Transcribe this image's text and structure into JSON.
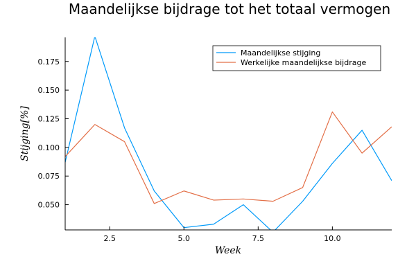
{
  "chart_data": {
    "type": "line",
    "title": "Maandelijkse bijdrage tot het totaal vermogen",
    "xlabel": "Week",
    "ylabel": "Stijging[%]",
    "xlim": [
      1,
      12
    ],
    "ylim": [
      0.028,
      0.196
    ],
    "x_ticks": [
      2.5,
      5.0,
      7.5,
      10.0
    ],
    "x_tick_labels": [
      "2.5",
      "5.0",
      "7.5",
      "10.0"
    ],
    "y_ticks": [
      0.05,
      0.075,
      0.1,
      0.125,
      0.15,
      0.175
    ],
    "y_tick_labels": [
      "0.050",
      "0.075",
      "0.100",
      "0.125",
      "0.150",
      "0.175"
    ],
    "grid": false,
    "legend_position": "top-right",
    "x": [
      1,
      2,
      3,
      4,
      5,
      6,
      7,
      8,
      9,
      10,
      11,
      12
    ],
    "series": [
      {
        "name": "Maandelijkse stijging",
        "color": "#009AFA",
        "values": [
          0.087,
          0.197,
          0.117,
          0.062,
          0.03,
          0.033,
          0.05,
          0.026,
          0.053,
          0.086,
          0.115,
          0.071
        ]
      },
      {
        "name": "Werkelijke maandelijkse bijdrage",
        "color": "#E36F47",
        "values": [
          0.092,
          0.12,
          0.105,
          0.051,
          0.062,
          0.054,
          0.055,
          0.053,
          0.065,
          0.131,
          0.095,
          0.118
        ]
      }
    ]
  }
}
